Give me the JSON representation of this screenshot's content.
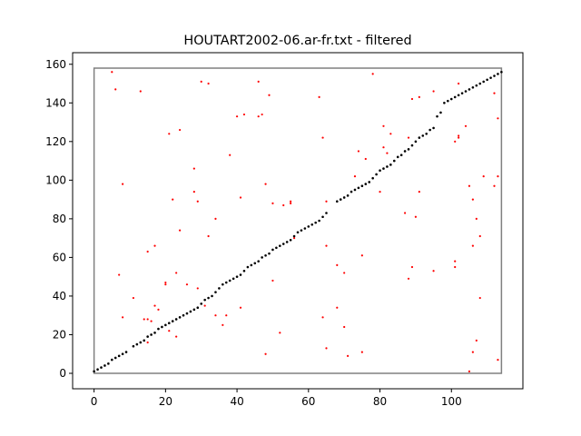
{
  "chart_data": {
    "type": "scatter",
    "title": "HOUTART2002-06.ar-fr.txt - filtered",
    "xlabel": "",
    "ylabel": "",
    "xlim": [
      -6,
      120
    ],
    "ylim": [
      -8,
      166
    ],
    "x_ticks": [
      0,
      20,
      40,
      60,
      80,
      100
    ],
    "y_ticks": [
      0,
      20,
      40,
      60,
      80,
      100,
      120,
      140,
      160
    ],
    "grid": false,
    "legend": "none",
    "colors": {
      "alignment": "#000000",
      "scatter": "#ff0000",
      "box": "#808080"
    },
    "box": {
      "x": [
        0,
        114
      ],
      "y": [
        0,
        158
      ]
    },
    "series": [
      {
        "values": [
          [
            0,
            1
          ],
          [
            1,
            2
          ],
          [
            2,
            3
          ],
          [
            3,
            4
          ],
          [
            4,
            5
          ],
          [
            5,
            7
          ],
          [
            6,
            8
          ],
          [
            7,
            9
          ],
          [
            8,
            10
          ],
          [
            9,
            11
          ],
          [
            11,
            14
          ],
          [
            12,
            15
          ],
          [
            13,
            16
          ],
          [
            14,
            17
          ],
          [
            15,
            19
          ],
          [
            16,
            20
          ],
          [
            17,
            21
          ],
          [
            18,
            23
          ],
          [
            19,
            24
          ],
          [
            20,
            25
          ],
          [
            21,
            26
          ],
          [
            22,
            27
          ],
          [
            23,
            28
          ],
          [
            24,
            29
          ],
          [
            25,
            30
          ],
          [
            26,
            31
          ],
          [
            27,
            32
          ],
          [
            28,
            33
          ],
          [
            29,
            34
          ],
          [
            30,
            36
          ],
          [
            31,
            38
          ],
          [
            32,
            39
          ],
          [
            33,
            40
          ],
          [
            34,
            42
          ],
          [
            35,
            44
          ],
          [
            36,
            46
          ],
          [
            37,
            47
          ],
          [
            38,
            48
          ],
          [
            39,
            49
          ],
          [
            40,
            50
          ],
          [
            41,
            51
          ],
          [
            42,
            53
          ],
          [
            43,
            55
          ],
          [
            44,
            56
          ],
          [
            45,
            57
          ],
          [
            46,
            58
          ],
          [
            47,
            60
          ],
          [
            48,
            61
          ],
          [
            49,
            62
          ],
          [
            50,
            64
          ],
          [
            51,
            65
          ],
          [
            52,
            66
          ],
          [
            53,
            67
          ],
          [
            54,
            68
          ],
          [
            55,
            69
          ],
          [
            56,
            71
          ],
          [
            57,
            73
          ],
          [
            58,
            74
          ],
          [
            59,
            75
          ],
          [
            60,
            76
          ],
          [
            61,
            77
          ],
          [
            62,
            78
          ],
          [
            63,
            79
          ],
          [
            64,
            81
          ],
          [
            65,
            83
          ],
          [
            68,
            89
          ],
          [
            69,
            90
          ],
          [
            70,
            91
          ],
          [
            71,
            92
          ],
          [
            72,
            94
          ],
          [
            73,
            95
          ],
          [
            74,
            96
          ],
          [
            75,
            97
          ],
          [
            76,
            98
          ],
          [
            77,
            99
          ],
          [
            78,
            101
          ],
          [
            79,
            103
          ],
          [
            80,
            105
          ],
          [
            81,
            106
          ],
          [
            82,
            107
          ],
          [
            83,
            108
          ],
          [
            84,
            110
          ],
          [
            85,
            112
          ],
          [
            86,
            113
          ],
          [
            87,
            115
          ],
          [
            88,
            116
          ],
          [
            89,
            118
          ],
          [
            90,
            120
          ],
          [
            91,
            122
          ],
          [
            92,
            123
          ],
          [
            93,
            124
          ],
          [
            94,
            126
          ],
          [
            95,
            127
          ],
          [
            96,
            133
          ],
          [
            97,
            135
          ],
          [
            98,
            140
          ],
          [
            99,
            141
          ],
          [
            100,
            142
          ],
          [
            101,
            143
          ],
          [
            102,
            144
          ],
          [
            103,
            145
          ],
          [
            104,
            146
          ],
          [
            105,
            147
          ],
          [
            106,
            148
          ],
          [
            107,
            149
          ],
          [
            108,
            150
          ],
          [
            109,
            151
          ],
          [
            110,
            152
          ],
          [
            111,
            153
          ],
          [
            112,
            154
          ],
          [
            113,
            155
          ],
          [
            114,
            156
          ]
        ]
      },
      {
        "values": [
          [
            5,
            156
          ],
          [
            6,
            147
          ],
          [
            7,
            51
          ],
          [
            8,
            29
          ],
          [
            8,
            98
          ],
          [
            11,
            39
          ],
          [
            13,
            146
          ],
          [
            14,
            28
          ],
          [
            15,
            16
          ],
          [
            15,
            28
          ],
          [
            15,
            63
          ],
          [
            16,
            27
          ],
          [
            17,
            35
          ],
          [
            17,
            66
          ],
          [
            18,
            33
          ],
          [
            20,
            46
          ],
          [
            20,
            47
          ],
          [
            21,
            124
          ],
          [
            21,
            22
          ],
          [
            22,
            90
          ],
          [
            22,
            27
          ],
          [
            23,
            52
          ],
          [
            23,
            19
          ],
          [
            24,
            126
          ],
          [
            24,
            74
          ],
          [
            26,
            46
          ],
          [
            28,
            94
          ],
          [
            28,
            106
          ],
          [
            29,
            44
          ],
          [
            29,
            89
          ],
          [
            30,
            151
          ],
          [
            31,
            35
          ],
          [
            32,
            150
          ],
          [
            32,
            71
          ],
          [
            34,
            80
          ],
          [
            34,
            30
          ],
          [
            36,
            25
          ],
          [
            37,
            30
          ],
          [
            38,
            113
          ],
          [
            40,
            133
          ],
          [
            41,
            91
          ],
          [
            41,
            34
          ],
          [
            42,
            134
          ],
          [
            46,
            151
          ],
          [
            46,
            133
          ],
          [
            47,
            134
          ],
          [
            48,
            10
          ],
          [
            48,
            98
          ],
          [
            49,
            144
          ],
          [
            50,
            48
          ],
          [
            50,
            88
          ],
          [
            52,
            21
          ],
          [
            53,
            87
          ],
          [
            55,
            88
          ],
          [
            55,
            89
          ],
          [
            56,
            70
          ],
          [
            63,
            143
          ],
          [
            64,
            29
          ],
          [
            64,
            122
          ],
          [
            65,
            13
          ],
          [
            65,
            66
          ],
          [
            65,
            89
          ],
          [
            68,
            56
          ],
          [
            68,
            34
          ],
          [
            70,
            52
          ],
          [
            70,
            24
          ],
          [
            71,
            9
          ],
          [
            73,
            102
          ],
          [
            74,
            115
          ],
          [
            75,
            11
          ],
          [
            75,
            61
          ],
          [
            76,
            111
          ],
          [
            78,
            155
          ],
          [
            80,
            94
          ],
          [
            81,
            128
          ],
          [
            81,
            117
          ],
          [
            82,
            114
          ],
          [
            83,
            124
          ],
          [
            87,
            83
          ],
          [
            88,
            122
          ],
          [
            88,
            49
          ],
          [
            89,
            142
          ],
          [
            89,
            55
          ],
          [
            90,
            81
          ],
          [
            91,
            143
          ],
          [
            91,
            94
          ],
          [
            95,
            146
          ],
          [
            95,
            53
          ],
          [
            101,
            58
          ],
          [
            101,
            55
          ],
          [
            101,
            120
          ],
          [
            102,
            123
          ],
          [
            102,
            122
          ],
          [
            102,
            150
          ],
          [
            104,
            128
          ],
          [
            105,
            1
          ],
          [
            105,
            97
          ],
          [
            106,
            11
          ],
          [
            106,
            66
          ],
          [
            106,
            90
          ],
          [
            107,
            80
          ],
          [
            107,
            17
          ],
          [
            108,
            71
          ],
          [
            108,
            39
          ],
          [
            109,
            102
          ],
          [
            112,
            145
          ],
          [
            112,
            97
          ],
          [
            113,
            132
          ],
          [
            113,
            102
          ],
          [
            113,
            7
          ]
        ]
      }
    ]
  }
}
